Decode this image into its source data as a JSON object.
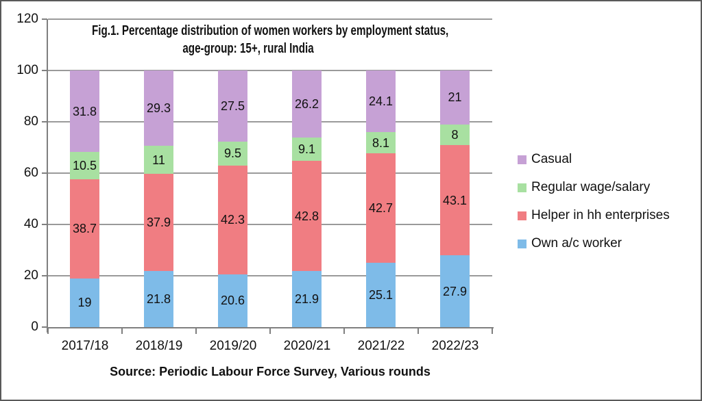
{
  "chart_data": {
    "type": "bar",
    "stacked": true,
    "title_lines": [
      "Fig.1.  Percentage distribution of women workers by employment status,",
      "age-group: 15+, rural India"
    ],
    "categories": [
      "2017/18",
      "2018/19",
      "2019/20",
      "2020/21",
      "2021/22",
      "2022/23"
    ],
    "series": [
      {
        "name": "Own a/c worker",
        "color": "#7EBBE8",
        "values": [
          19,
          21.8,
          20.6,
          21.9,
          25.1,
          27.9
        ]
      },
      {
        "name": "Helper in hh enterprises",
        "color": "#F07D82",
        "values": [
          38.7,
          37.9,
          42.3,
          42.8,
          42.7,
          43.1
        ]
      },
      {
        "name": "Regular wage/salary",
        "color": "#A8E0A1",
        "values": [
          10.5,
          11,
          9.5,
          9.1,
          8.1,
          8
        ]
      },
      {
        "name": "Casual",
        "color": "#C6A1D5",
        "values": [
          31.8,
          29.3,
          27.5,
          26.2,
          24.1,
          21
        ]
      }
    ],
    "y_ticks": [
      0,
      20,
      40,
      60,
      80,
      100,
      120
    ],
    "ylim": [
      0,
      120
    ],
    "grid": true,
    "legend_position": "right",
    "legend_order_top_to_bottom": [
      "Casual",
      "Regular wage/salary",
      "Helper in hh enterprises",
      "Own a/c worker"
    ],
    "source": "Source: Periodic Labour Force Survey, Various rounds",
    "colors": {
      "gridline": "#9a9a9a",
      "axis": "#7f7f7f",
      "text": "#111111",
      "border": "#595959"
    }
  }
}
